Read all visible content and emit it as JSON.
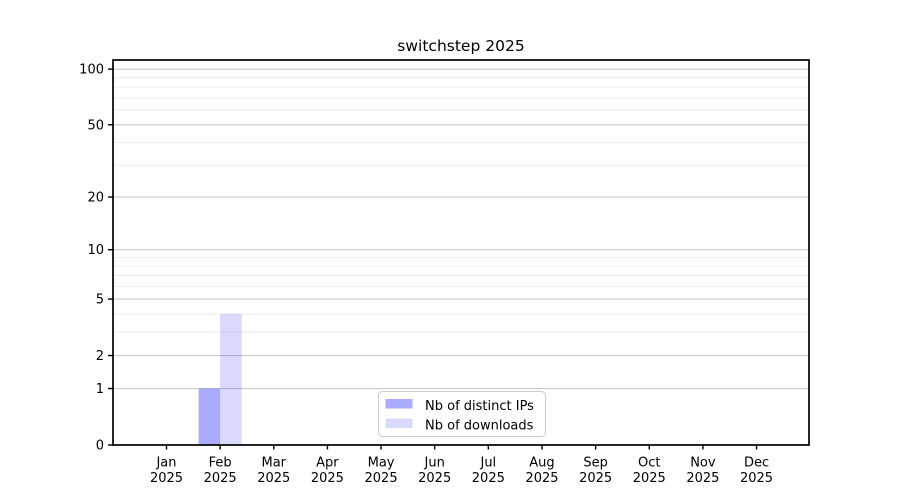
{
  "chart_data": {
    "type": "bar",
    "title": "switchstep 2025",
    "x_tick_months": [
      "Jan",
      "Feb",
      "Mar",
      "Apr",
      "May",
      "Jun",
      "Jul",
      "Aug",
      "Sep",
      "Oct",
      "Nov",
      "Dec"
    ],
    "x_tick_year": "2025",
    "categories": [
      "Jan 2025",
      "Feb 2025",
      "Mar 2025",
      "Apr 2025",
      "May 2025",
      "Jun 2025",
      "Jul 2025",
      "Aug 2025",
      "Sep 2025",
      "Oct 2025",
      "Nov 2025",
      "Dec 2025"
    ],
    "series": [
      {
        "name": "Nb of distinct IPs",
        "color": "#0000ff",
        "opacity": 0.33,
        "values": [
          0,
          1,
          0,
          0,
          0,
          0,
          0,
          0,
          0,
          0,
          0,
          0
        ]
      },
      {
        "name": "Nb of downloads",
        "color": "#0000ff",
        "opacity": 0.15,
        "values": [
          0,
          4,
          0,
          0,
          0,
          0,
          0,
          0,
          0,
          0,
          0,
          0
        ]
      }
    ],
    "yscale": "log1p",
    "ylim": [
      0,
      112
    ],
    "yticks": [
      0,
      1,
      2,
      5,
      10,
      20,
      50,
      100
    ],
    "minor_yticks": [
      3,
      4,
      6,
      7,
      8,
      9,
      30,
      40,
      60,
      70,
      80,
      90
    ],
    "grid": true,
    "legend_position": "lower center",
    "xlabel": "",
    "ylabel": ""
  },
  "colors": {
    "background": "#ffffff",
    "spine": "#000000",
    "major_grid": "#cccccc",
    "minor_grid": "#ededed",
    "tick_text": "#000000",
    "legend_border": "#cccccc",
    "legend_bg": "#ffffff"
  }
}
